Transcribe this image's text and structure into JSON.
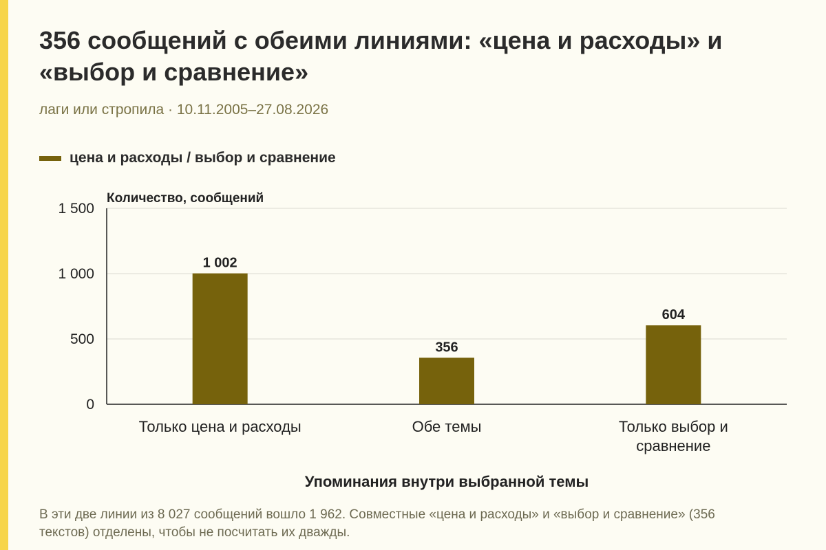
{
  "header": {
    "title": "356 сообщений с обеими линиями: «цена и расходы» и «выбор и сравнение»",
    "subtitle": "лаги или стропила · 10.11.2005–27.08.2026"
  },
  "legend": {
    "label": "цена и расходы / выбор и сравнение"
  },
  "footer": {
    "note": "В эти две линии из 8 027 сообщений вошло 1 962. Совместные «цена и расходы» и «выбор и сравнение» (356 текстов) отделены, чтобы не посчитать их дважды."
  },
  "colors": {
    "bar": "#76620c",
    "accent": "#f7d54a",
    "background": "#fdfcf3",
    "grid": "#dcdad0",
    "axis": "#222222"
  },
  "chart_data": {
    "type": "bar",
    "categories": [
      "Только цена и расходы",
      "Обе темы",
      "Только выбор и сравнение"
    ],
    "series": [
      {
        "name": "цена и расходы / выбор и сравнение",
        "values": [
          1002,
          356,
          604
        ]
      }
    ],
    "data_labels": [
      "1 002",
      "356",
      "604"
    ],
    "ylabel": "Количество, сообщений",
    "xlabel": "Упоминания внутри выбранной темы",
    "ylim": [
      0,
      1500
    ],
    "yticks": [
      0,
      500,
      1000,
      1500
    ],
    "ytick_labels": [
      "0",
      "500",
      "1 000",
      "1 500"
    ],
    "grid": true,
    "legend_position": "top-left"
  }
}
